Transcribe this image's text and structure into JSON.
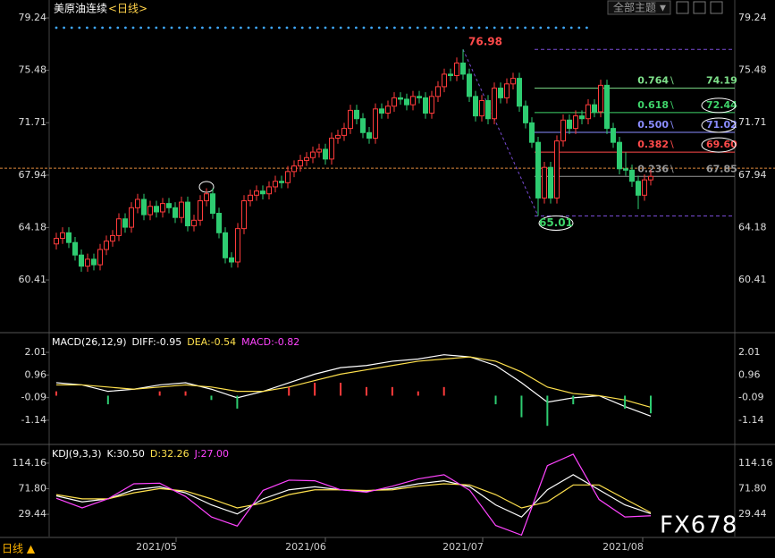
{
  "header": {
    "title": "美原油连续",
    "period": "<日线>",
    "theme_button": "全部主题",
    "dropdown": "▼"
  },
  "footer": {
    "period": "日线 ▲",
    "watermark": "FX678"
  },
  "date_labels": [
    "2021/05",
    "2021/06",
    "2021/07",
    "2021/08"
  ],
  "chart_data": [
    {
      "type": "candlestick",
      "open": [
        63.0,
        63.4,
        63.8,
        63.1,
        62.2,
        61.4,
        61.9,
        61.5,
        62.6,
        63.2,
        63.6,
        64.8,
        64.2,
        65.6,
        66.2,
        65.1,
        65.7,
        65.3,
        65.9,
        65.6,
        64.9,
        66.0,
        64.3,
        64.7,
        66.1,
        66.6,
        65.2,
        63.8,
        62.0,
        61.7,
        64.1,
        66.1,
        66.5,
        66.8,
        66.6,
        67.1,
        67.5,
        67.4,
        68.2,
        68.6,
        69.0,
        69.2,
        69.6,
        69.8,
        69.1,
        70.6,
        70.8,
        71.3,
        72.6,
        72.0,
        71.0,
        70.6,
        72.7,
        72.4,
        72.9,
        73.5,
        73.4,
        73.0,
        73.6,
        73.5,
        72.4,
        73.6,
        74.3,
        75.2,
        75.1,
        76.0,
        75.2,
        73.6,
        72.2,
        73.3,
        72.0,
        74.2,
        73.5,
        74.5,
        74.9,
        72.9,
        71.7,
        70.3,
        66.3,
        68.5,
        66.3,
        70.4,
        71.9,
        71.3,
        72.2,
        72.0,
        73.0,
        72.5,
        74.4,
        71.3,
        70.3,
        68.4,
        68.3,
        67.5,
        66.5,
        67.6
      ],
      "high": [
        63.8,
        64.2,
        64.2,
        63.5,
        62.6,
        62.3,
        62.3,
        63.0,
        63.6,
        64.0,
        65.2,
        65.2,
        66.0,
        66.6,
        66.6,
        66.1,
        66.1,
        66.3,
        66.3,
        66.0,
        66.4,
        66.4,
        65.1,
        66.5,
        67.0,
        67.0,
        65.6,
        64.2,
        62.4,
        64.5,
        66.5,
        66.9,
        67.2,
        67.2,
        67.5,
        67.9,
        67.9,
        68.6,
        69.0,
        69.4,
        69.6,
        70.0,
        70.2,
        70.2,
        71.0,
        71.2,
        71.7,
        73.0,
        73.0,
        72.4,
        71.4,
        73.1,
        73.1,
        73.3,
        73.9,
        73.9,
        73.8,
        74.0,
        74.0,
        73.9,
        74.0,
        74.7,
        75.6,
        75.6,
        76.4,
        76.98,
        75.6,
        74.0,
        73.7,
        73.7,
        74.6,
        74.6,
        74.9,
        75.3,
        75.3,
        73.3,
        72.1,
        70.7,
        68.9,
        68.9,
        70.8,
        72.3,
        72.3,
        72.6,
        72.6,
        73.4,
        73.4,
        74.8,
        74.8,
        71.7,
        70.7,
        69.6,
        68.7,
        67.9,
        68.0,
        68.3
      ],
      "low": [
        62.6,
        63.0,
        62.7,
        61.8,
        61.0,
        61.0,
        61.1,
        61.1,
        62.2,
        62.8,
        63.2,
        63.8,
        63.8,
        65.2,
        64.7,
        64.7,
        64.9,
        64.9,
        65.2,
        64.5,
        64.5,
        63.9,
        63.9,
        64.3,
        65.7,
        64.8,
        63.4,
        61.6,
        61.3,
        61.3,
        63.7,
        65.7,
        66.1,
        66.2,
        66.2,
        66.7,
        67.0,
        67.0,
        67.8,
        68.2,
        68.6,
        68.8,
        69.2,
        68.7,
        68.7,
        70.2,
        70.4,
        70.9,
        71.6,
        70.6,
        70.2,
        70.2,
        72.0,
        72.0,
        72.5,
        73.0,
        72.6,
        72.6,
        73.1,
        72.0,
        72.0,
        73.2,
        73.9,
        74.7,
        74.7,
        74.8,
        73.2,
        71.8,
        71.8,
        71.6,
        71.6,
        73.1,
        73.1,
        74.1,
        72.5,
        71.3,
        69.9,
        65.01,
        65.9,
        65.9,
        65.9,
        70.0,
        70.9,
        70.9,
        71.6,
        71.6,
        72.1,
        72.1,
        70.9,
        69.9,
        68.0,
        67.9,
        67.1,
        65.5,
        66.1,
        67.2
      ],
      "close": [
        63.4,
        63.8,
        63.1,
        62.2,
        61.4,
        61.9,
        61.5,
        62.6,
        63.2,
        63.6,
        64.8,
        64.2,
        65.6,
        66.2,
        65.1,
        65.7,
        65.3,
        65.9,
        65.6,
        64.9,
        66.0,
        64.3,
        64.7,
        66.1,
        66.6,
        65.2,
        63.8,
        62.0,
        61.7,
        64.1,
        66.1,
        66.5,
        66.8,
        66.6,
        67.1,
        67.5,
        67.4,
        68.2,
        68.6,
        69.0,
        69.2,
        69.6,
        69.8,
        69.1,
        70.6,
        70.8,
        71.3,
        72.6,
        72.0,
        71.0,
        70.6,
        72.7,
        72.4,
        72.9,
        73.5,
        73.4,
        73.0,
        73.6,
        73.5,
        72.4,
        73.6,
        74.3,
        75.2,
        75.1,
        76.0,
        75.2,
        73.6,
        72.2,
        73.3,
        72.0,
        74.2,
        73.5,
        74.5,
        74.9,
        72.9,
        71.7,
        70.3,
        66.3,
        68.5,
        66.3,
        70.4,
        71.9,
        71.3,
        72.2,
        72.0,
        73.0,
        72.5,
        74.4,
        71.3,
        70.3,
        68.4,
        68.3,
        67.5,
        66.5,
        67.6,
        67.85
      ],
      "up_color": "#ff3b3b",
      "down_color": "#2ecc71",
      "ylim": [
        56.75,
        80.53
      ],
      "yticks": [
        79.24,
        75.48,
        71.71,
        67.94,
        64.18,
        60.41
      ],
      "reference_line": 68.44,
      "peak": {
        "price": 76.98,
        "label": "76.98"
      },
      "trough": {
        "price": 65.01,
        "label": "65.01"
      },
      "fib_levels": [
        {
          "ratio": "0.764",
          "price": 74.19,
          "label": "74.19",
          "color": "#7ee08a"
        },
        {
          "ratio": "0.618",
          "price": 72.44,
          "label": "72.44",
          "color": "#3fd46a"
        },
        {
          "ratio": "0.500",
          "price": 71.02,
          "label": "71.02",
          "color": "#8a8cff"
        },
        {
          "ratio": "0.382",
          "price": 69.6,
          "label": "69.60",
          "color": "#ff4a4a"
        },
        {
          "ratio": "0.236",
          "price": 67.85,
          "label": "67.85",
          "color": "#9a9a9a"
        }
      ]
    },
    {
      "type": "indicator",
      "title": "MACD(26,12,9)",
      "series": [
        {
          "name": "DIFF:-0.95",
          "color": "#ffffff",
          "kind": "line",
          "values": [
            0.6,
            0.5,
            0.2,
            0.3,
            0.5,
            0.6,
            0.3,
            -0.1,
            0.2,
            0.6,
            1.0,
            1.3,
            1.4,
            1.6,
            1.7,
            1.9,
            1.8,
            1.4,
            0.6,
            -0.3,
            -0.1,
            0.0,
            -0.5,
            -0.95
          ]
        },
        {
          "name": "DEA:-0.54",
          "color": "#ffe14d",
          "kind": "line",
          "values": [
            0.5,
            0.5,
            0.4,
            0.3,
            0.4,
            0.5,
            0.4,
            0.2,
            0.2,
            0.4,
            0.7,
            1.0,
            1.2,
            1.4,
            1.6,
            1.7,
            1.8,
            1.6,
            1.1,
            0.4,
            0.1,
            0.0,
            -0.2,
            -0.54
          ]
        },
        {
          "name": "MACD:-0.82",
          "color": "#ff44ff",
          "kind": "histogram",
          "up_color": "#ff3b3b",
          "down_color": "#2ecc71",
          "values": [
            0.2,
            0.0,
            -0.4,
            0.0,
            0.2,
            0.2,
            -0.2,
            -0.6,
            0.0,
            0.4,
            0.6,
            0.6,
            0.4,
            0.4,
            0.2,
            0.4,
            0.0,
            -0.4,
            -1.0,
            -1.4,
            -0.4,
            0.0,
            -0.6,
            -0.82
          ]
        }
      ],
      "ylim": [
        -2.18,
        2.8
      ],
      "yticks": [
        2.01,
        0.96,
        -0.09,
        -1.14
      ]
    },
    {
      "type": "indicator",
      "title": "KDJ(9,3,3)",
      "series": [
        {
          "name": "K:30.50",
          "color": "#ffffff",
          "kind": "line",
          "values": [
            60,
            50,
            55,
            70,
            75,
            65,
            45,
            30,
            55,
            70,
            75,
            70,
            68,
            72,
            80,
            85,
            75,
            45,
            25,
            70,
            95,
            70,
            45,
            30.5
          ]
        },
        {
          "name": "D:32.26",
          "color": "#ffe14d",
          "kind": "line",
          "values": [
            62,
            55,
            55,
            65,
            72,
            68,
            55,
            40,
            48,
            62,
            70,
            70,
            69,
            70,
            76,
            80,
            78,
            62,
            40,
            50,
            78,
            78,
            55,
            32.26
          ]
        },
        {
          "name": "J:27.00",
          "color": "#ff44ff",
          "kind": "line",
          "values": [
            56,
            40,
            55,
            80,
            81,
            59,
            25,
            10,
            69,
            86,
            85,
            70,
            66,
            76,
            88,
            95,
            69,
            11,
            -5,
            110,
            129,
            54,
            25,
            27
          ]
        }
      ],
      "ylim": [
        -7.4,
        140.7
      ],
      "yticks": [
        114.16,
        {
          "value": 71.8,
          "label": "71.80"
        },
        29.44
      ]
    }
  ]
}
